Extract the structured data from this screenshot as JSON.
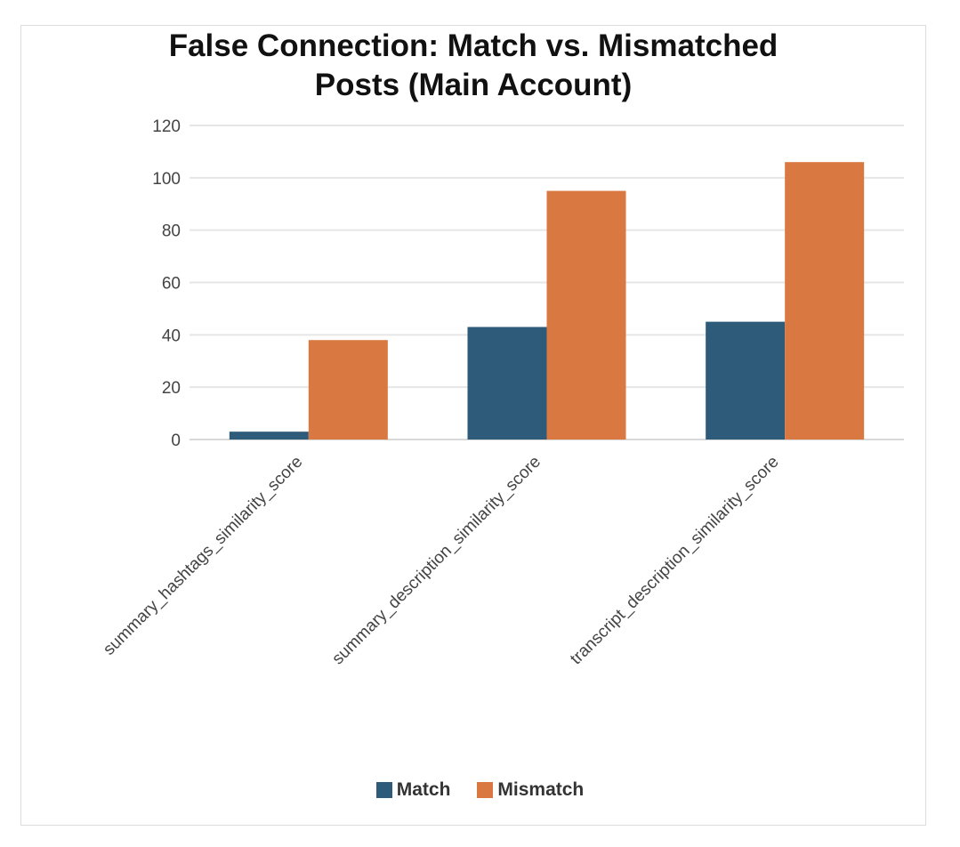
{
  "chart_data": {
    "type": "bar",
    "title_line1": "False Connection: Match vs. Mismatched",
    "title_line2": "Posts (Main Account)",
    "xlabel": "",
    "ylabel": "",
    "categories": [
      "summary_hashtags_similarity_score",
      "summary_description_similarity_score",
      "transcript_description_similarity_score"
    ],
    "series": [
      {
        "name": "Match",
        "values": [
          3,
          43,
          45
        ],
        "color": "#2e5b7a"
      },
      {
        "name": "Mismatch",
        "values": [
          38,
          95,
          106
        ],
        "color": "#d97941"
      }
    ],
    "ylim": [
      0,
      120
    ],
    "yticks": [
      "0",
      "20",
      "40",
      "60",
      "80",
      "100",
      "120"
    ],
    "grid": true,
    "legend_position": "bottom"
  }
}
